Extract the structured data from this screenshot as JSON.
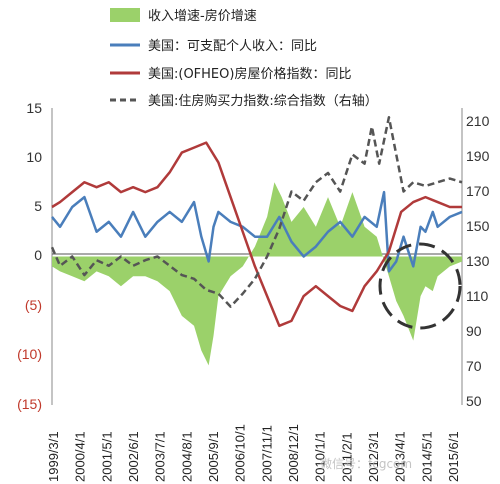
{
  "chart_data": {
    "type": "line",
    "x_ticks": [
      "1999/3/1",
      "2000/4/1",
      "2001/5/1",
      "2002/6/1",
      "2003/7/1",
      "2004/8/1",
      "2005/9/1",
      "2006/10/1",
      "2007/11/1",
      "2008/12/1",
      "2010/1/1",
      "2011/2/1",
      "2012/3/1",
      "2013/4/1",
      "2014/5/1",
      "2015/6/1"
    ],
    "y_left_ticks": [
      "15",
      "10",
      "5",
      "0",
      "(5)",
      "(10)",
      "(15)"
    ],
    "y_left_tick_colors": [
      "#333333",
      "#333333",
      "#333333",
      "#333333",
      "#c0392b",
      "#c0392b",
      "#c0392b"
    ],
    "y_right_ticks": [
      "210",
      "190",
      "170",
      "150",
      "130",
      "110",
      "90",
      "70",
      "50"
    ],
    "ylim_left": [
      -15,
      15
    ],
    "ylim_right": [
      50,
      210
    ],
    "x_range": [
      1999.17,
      2016.0
    ],
    "legend": [
      {
        "label": "收入增速-房价增速",
        "kind": "area",
        "color": "#9bd16a"
      },
      {
        "label": "美国：可支配个人收入：同比",
        "kind": "line",
        "color": "#4a7ebb"
      },
      {
        "label": "美国:(OFHEO)房屋价格指数：同比",
        "kind": "line",
        "color": "#b03a3a"
      },
      {
        "label": "美国:住房购买力指数:综合指数（右轴）",
        "kind": "dashed",
        "color": "#555555"
      }
    ],
    "series": [
      {
        "name": "收入增速-房价增速",
        "axis": "left",
        "type": "area",
        "color": "#9bd16a",
        "x": [
          1999.17,
          1999.5,
          2000.0,
          2000.5,
          2001.0,
          2001.5,
          2002.0,
          2002.5,
          2003.0,
          2003.5,
          2004.0,
          2004.5,
          2005.0,
          2005.3,
          2005.6,
          2005.8,
          2006.0,
          2006.5,
          2007.0,
          2007.5,
          2008.0,
          2008.3,
          2008.6,
          2009.0,
          2009.5,
          2010.0,
          2010.5,
          2011.0,
          2011.5,
          2012.0,
          2012.5,
          2013.0,
          2013.3,
          2013.6,
          2014.0,
          2014.3,
          2014.5,
          2014.8,
          2015.0,
          2015.5,
          2016.0
        ],
        "y": [
          -1.0,
          -1.5,
          -2.0,
          -2.5,
          -1.5,
          -2.0,
          -3.0,
          -2.0,
          -2.0,
          -2.5,
          -3.5,
          -6.0,
          -7.0,
          -9.5,
          -11.0,
          -8.0,
          -4.0,
          -2.0,
          -1.0,
          1.0,
          4.0,
          7.5,
          6.0,
          3.5,
          5.0,
          3.0,
          6.0,
          3.0,
          6.5,
          3.0,
          2.0,
          -2.0,
          -4.5,
          -6.0,
          -8.5,
          -4.0,
          -3.0,
          -3.5,
          -2.0,
          -1.0,
          -0.5
        ]
      },
      {
        "name": "美国：可支配个人收入：同比",
        "axis": "left",
        "type": "line",
        "color": "#4a7ebb",
        "x": [
          1999.17,
          1999.5,
          2000.0,
          2000.5,
          2001.0,
          2001.5,
          2002.0,
          2002.5,
          2003.0,
          2003.5,
          2004.0,
          2004.5,
          2005.0,
          2005.3,
          2005.6,
          2005.8,
          2006.0,
          2006.5,
          2007.0,
          2007.5,
          2008.0,
          2008.5,
          2009.0,
          2009.5,
          2010.0,
          2010.5,
          2011.0,
          2011.5,
          2012.0,
          2012.5,
          2012.8,
          2013.0,
          2013.3,
          2013.6,
          2014.0,
          2014.3,
          2014.5,
          2014.8,
          2015.0,
          2015.5,
          2016.0
        ],
        "y": [
          4.0,
          3.0,
          5.0,
          6.0,
          2.5,
          3.5,
          2.0,
          4.5,
          2.0,
          3.5,
          4.5,
          3.5,
          5.5,
          2.0,
          -0.5,
          3.0,
          4.5,
          3.5,
          3.0,
          2.0,
          2.0,
          4.0,
          1.5,
          0.0,
          1.0,
          2.5,
          3.5,
          2.0,
          4.0,
          3.0,
          6.5,
          -1.5,
          -0.5,
          2.0,
          -1.0,
          3.0,
          2.5,
          4.5,
          3.0,
          4.0,
          4.5
        ]
      },
      {
        "name": "美国:(OFHEO)房屋价格指数：同比",
        "axis": "left",
        "type": "line",
        "color": "#b03a3a",
        "x": [
          1999.17,
          1999.5,
          2000.0,
          2000.5,
          2001.0,
          2001.5,
          2002.0,
          2002.5,
          2003.0,
          2003.5,
          2004.0,
          2004.5,
          2005.0,
          2005.5,
          2006.0,
          2006.5,
          2007.0,
          2007.5,
          2008.0,
          2008.5,
          2009.0,
          2009.5,
          2010.0,
          2010.5,
          2011.0,
          2011.5,
          2012.0,
          2012.5,
          2013.0,
          2013.5,
          2014.0,
          2014.5,
          2015.0,
          2015.5,
          2016.0
        ],
        "y": [
          5.0,
          5.5,
          6.5,
          7.5,
          7.0,
          7.5,
          6.5,
          7.0,
          6.5,
          7.0,
          8.5,
          10.5,
          11.0,
          11.5,
          9.5,
          6.0,
          2.5,
          -1.0,
          -4.0,
          -7.0,
          -6.5,
          -4.0,
          -3.0,
          -4.0,
          -5.0,
          -5.5,
          -3.0,
          -1.5,
          0.5,
          4.5,
          5.5,
          6.0,
          5.5,
          5.0,
          5.0
        ]
      },
      {
        "name": "美国:住房购买力指数:综合指数（右轴）",
        "axis": "right",
        "type": "line",
        "dashed": true,
        "color": "#555555",
        "x": [
          1999.17,
          1999.5,
          2000.0,
          2000.5,
          2001.0,
          2001.5,
          2002.0,
          2002.5,
          2003.0,
          2003.5,
          2004.0,
          2004.5,
          2005.0,
          2005.5,
          2006.0,
          2006.5,
          2007.0,
          2007.5,
          2008.0,
          2008.5,
          2009.0,
          2009.5,
          2010.0,
          2010.5,
          2011.0,
          2011.5,
          2012.0,
          2012.3,
          2012.6,
          2013.0,
          2013.3,
          2013.6,
          2014.0,
          2014.5,
          2015.0,
          2015.5,
          2016.0
        ],
        "y": [
          135,
          125,
          130,
          120,
          128,
          125,
          130,
          125,
          128,
          130,
          125,
          120,
          118,
          112,
          110,
          103,
          110,
          118,
          130,
          145,
          165,
          160,
          170,
          175,
          165,
          185,
          180,
          200,
          180,
          205,
          185,
          165,
          170,
          168,
          170,
          172,
          170
        ]
      }
    ],
    "annotations": [
      {
        "type": "dashed-circle",
        "color": "#333333"
      }
    ]
  },
  "watermark": "微信号：fcgcom"
}
